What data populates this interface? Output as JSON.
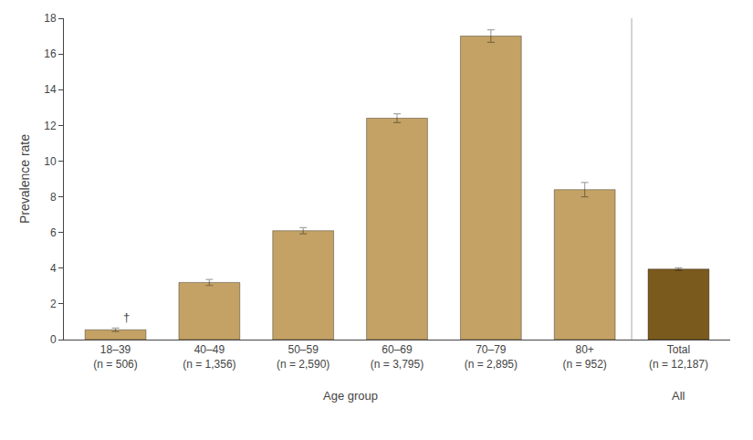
{
  "chart_data": {
    "type": "bar",
    "categories": [
      "18–39\n(n = 506)",
      "40–49\n(n = 1,356)",
      "50–59\n(n = 2,590)",
      "60–69\n(n = 3,795)",
      "70–79\n(n = 2,895)",
      "80+\n(n = 952)",
      "Total\n(n = 12,187)"
    ],
    "values": [
      0.55,
      3.2,
      6.1,
      12.4,
      17.0,
      8.4,
      3.95
    ],
    "errors": [
      0.1,
      0.17,
      0.17,
      0.25,
      0.35,
      0.4,
      0.07
    ],
    "colors": [
      "#C4A265",
      "#C4A265",
      "#C4A265",
      "#C4A265",
      "#C4A265",
      "#C4A265",
      "#7B5A1E"
    ],
    "ylabel": "Prevalence rate",
    "ylim": [
      0,
      18
    ],
    "yticks": [
      0,
      2,
      4,
      6,
      8,
      10,
      12,
      14,
      16,
      18
    ],
    "grid": false,
    "annotations": [
      {
        "text": "†",
        "category": "18–39\n(n = 506)"
      },
      {
        "text": "Age group",
        "categories": [
          "18–39\n(n = 506)",
          "40–49\n(n = 1,356)",
          "50–59\n(n = 2,590)",
          "60–69\n(n = 3,795)",
          "70–79\n(n = 2,895)",
          "80+\n(n = 952)"
        ]
      },
      {
        "text": "All",
        "categories": [
          "Total\n(n = 12,187)"
        ]
      }
    ]
  }
}
